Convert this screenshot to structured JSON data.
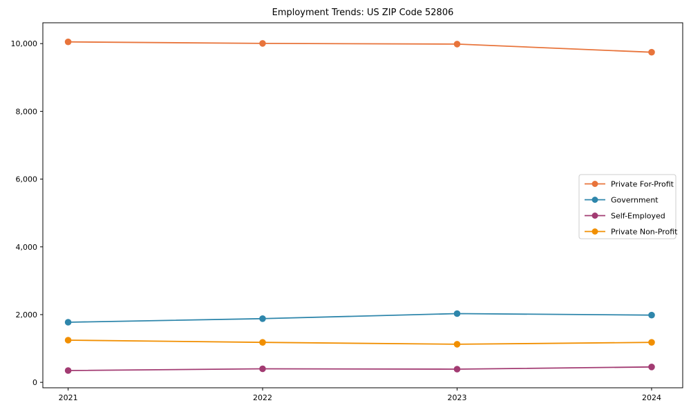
{
  "chart_data": {
    "type": "line",
    "title": "Employment Trends: US ZIP Code 52806",
    "xlabel": "",
    "ylabel": "",
    "x": [
      2021,
      2022,
      2023,
      2024
    ],
    "xticklabels": [
      "2021",
      "2022",
      "2023",
      "2024"
    ],
    "yticks": [
      0,
      2000,
      4000,
      6000,
      8000,
      10000
    ],
    "yticklabels": [
      "0",
      "2,000",
      "4,000",
      "6,000",
      "8,000",
      "10,000"
    ],
    "xlim": [
      2020.87,
      2024.16
    ],
    "ylim": [
      -160,
      10615
    ],
    "grid": false,
    "legend_position": "center right",
    "marker": "circle",
    "series": [
      {
        "name": "Private For-Profit",
        "color": "#E8743B",
        "values": [
          10050,
          10005,
          9985,
          9745
        ]
      },
      {
        "name": "Government",
        "color": "#2E86AB",
        "values": [
          1775,
          1880,
          2030,
          1985
        ]
      },
      {
        "name": "Self-Employed",
        "color": "#A23B72",
        "values": [
          350,
          400,
          390,
          455
        ]
      },
      {
        "name": "Private Non-Profit",
        "color": "#F18F01",
        "values": [
          1245,
          1180,
          1125,
          1180
        ]
      }
    ]
  }
}
